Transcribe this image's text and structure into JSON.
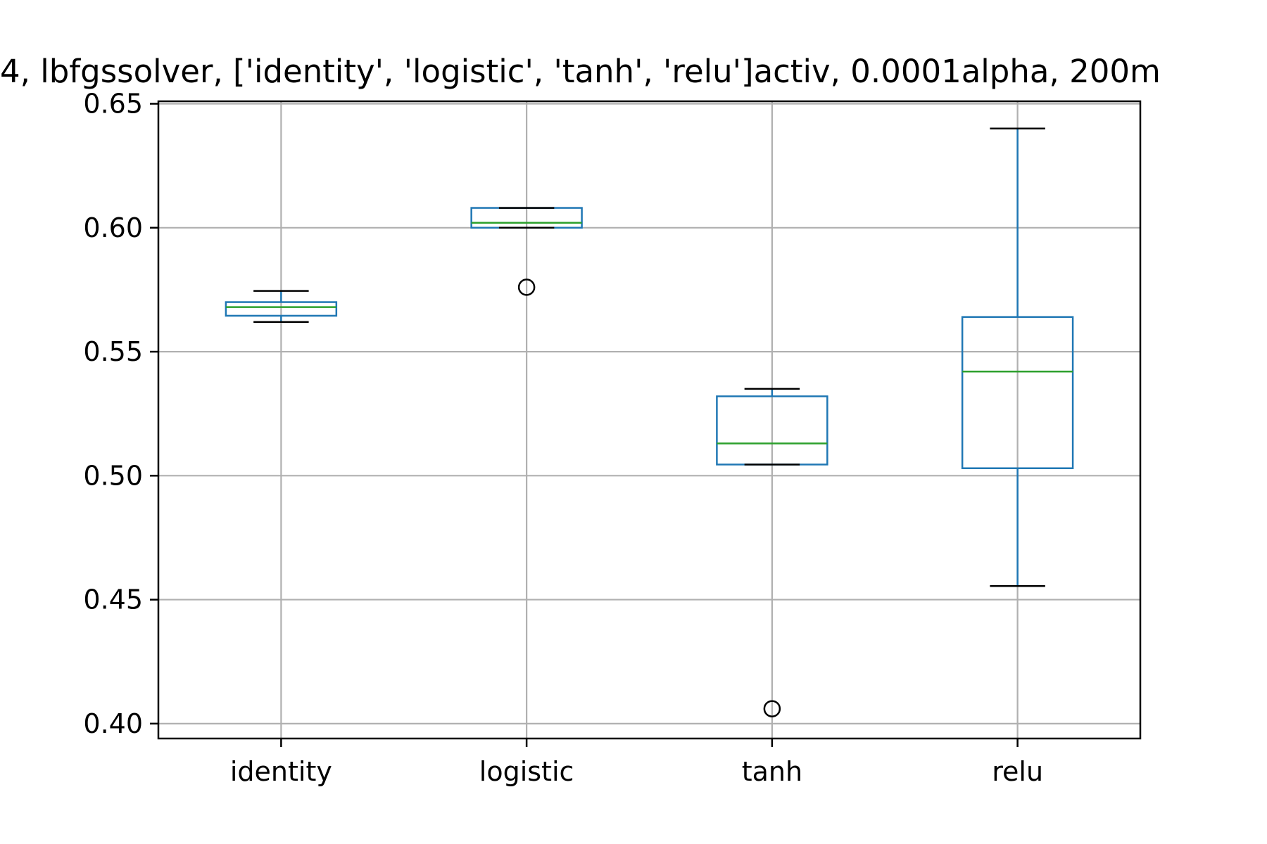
{
  "chart_data": {
    "type": "box",
    "title": "4, lbfgssolver, ['identity', 'logistic', 'tanh', 'relu']activ, 0.0001alpha, 200m",
    "xlabel": "",
    "ylabel": "",
    "categories": [
      "identity",
      "logistic",
      "tanh",
      "relu"
    ],
    "ylim": [
      0.394,
      0.651
    ],
    "yticks": [
      0.4,
      0.45,
      0.5,
      0.55,
      0.6,
      0.65
    ],
    "ytick_labels": [
      "0.40",
      "0.45",
      "0.50",
      "0.55",
      "0.60",
      "0.65"
    ],
    "grid": true,
    "boxes": [
      {
        "category": "identity",
        "whisker_low": 0.562,
        "q1": 0.5645,
        "median": 0.568,
        "q3": 0.57,
        "whisker_high": 0.5745,
        "outliers": []
      },
      {
        "category": "logistic",
        "whisker_low": 0.6,
        "q1": 0.6,
        "median": 0.602,
        "q3": 0.608,
        "whisker_high": 0.608,
        "outliers": [
          0.576
        ]
      },
      {
        "category": "tanh",
        "whisker_low": 0.5045,
        "q1": 0.5045,
        "median": 0.513,
        "q3": 0.532,
        "whisker_high": 0.535,
        "outliers": [
          0.406
        ]
      },
      {
        "category": "relu",
        "whisker_low": 0.4555,
        "q1": 0.503,
        "median": 0.542,
        "q3": 0.564,
        "whisker_high": 0.64,
        "outliers": []
      }
    ],
    "colors": {
      "box": "#1f77b4",
      "median": "#2ca02c",
      "whisker_cap": "#000000",
      "outlier": "#000000",
      "grid": "#b0b0b0",
      "axes": "#000000"
    }
  }
}
